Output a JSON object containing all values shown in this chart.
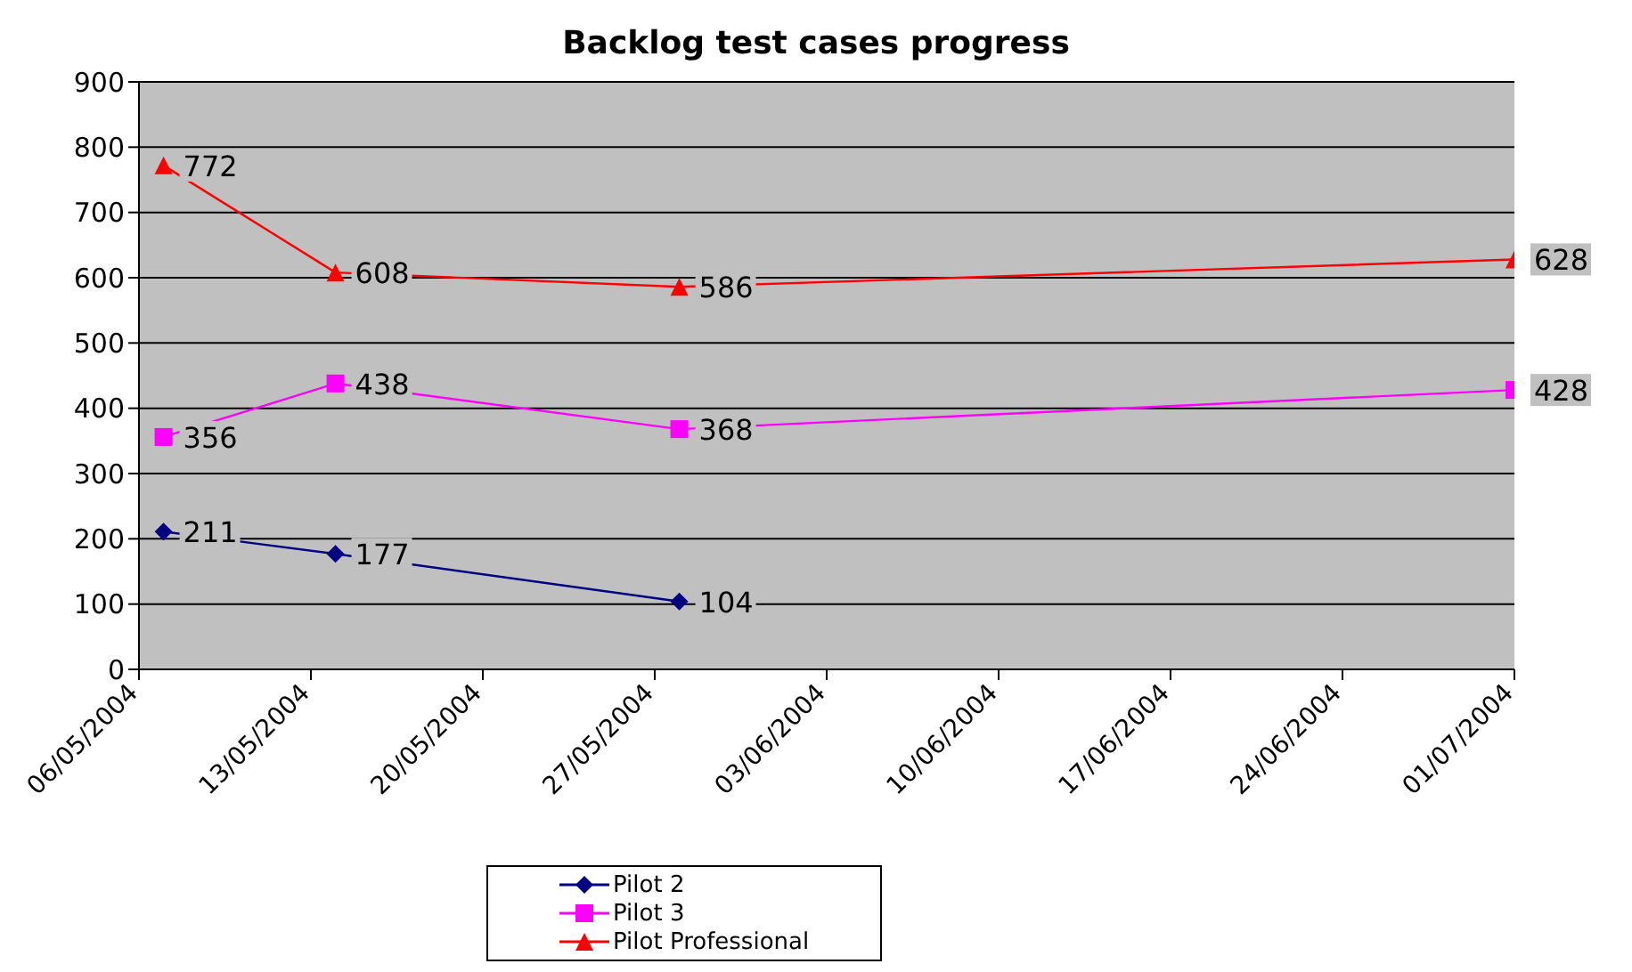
{
  "chart_data": {
    "type": "line",
    "title": "Backlog test cases progress",
    "xlim": [
      "2004-05-06",
      "2004-07-01"
    ],
    "xticks": [
      {
        "value": "2004-05-06",
        "label": "06/05/2004"
      },
      {
        "value": "2004-05-13",
        "label": "13/05/2004"
      },
      {
        "value": "2004-05-20",
        "label": "20/05/2004"
      },
      {
        "value": "2004-05-27",
        "label": "27/05/2004"
      },
      {
        "value": "2004-06-03",
        "label": "03/06/2004"
      },
      {
        "value": "2004-06-10",
        "label": "10/06/2004"
      },
      {
        "value": "2004-06-17",
        "label": "17/06/2004"
      },
      {
        "value": "2004-06-24",
        "label": "24/06/2004"
      },
      {
        "value": "2004-07-01",
        "label": "01/07/2004"
      }
    ],
    "ylim": [
      0,
      900
    ],
    "yticks": [
      0,
      100,
      200,
      300,
      400,
      500,
      600,
      700,
      800,
      900
    ],
    "grid": "y",
    "legend": "bottom",
    "data_labels": true,
    "series": [
      {
        "name": "Pilot 2",
        "color": "#000080",
        "marker": "diamond",
        "x": [
          "2004-05-07",
          "2004-05-14",
          "2004-05-28"
        ],
        "values": [
          211,
          177,
          104
        ]
      },
      {
        "name": "Pilot 3",
        "color": "#ff00ff",
        "marker": "square",
        "x": [
          "2004-05-07",
          "2004-05-14",
          "2004-05-28",
          "2004-07-01"
        ],
        "values": [
          356,
          438,
          368,
          428
        ]
      },
      {
        "name": "Pilot Professional",
        "color": "#ff0000",
        "marker": "triangle",
        "x": [
          "2004-05-07",
          "2004-05-14",
          "2004-05-28",
          "2004-07-01"
        ],
        "values": [
          772,
          608,
          586,
          628
        ]
      }
    ]
  }
}
